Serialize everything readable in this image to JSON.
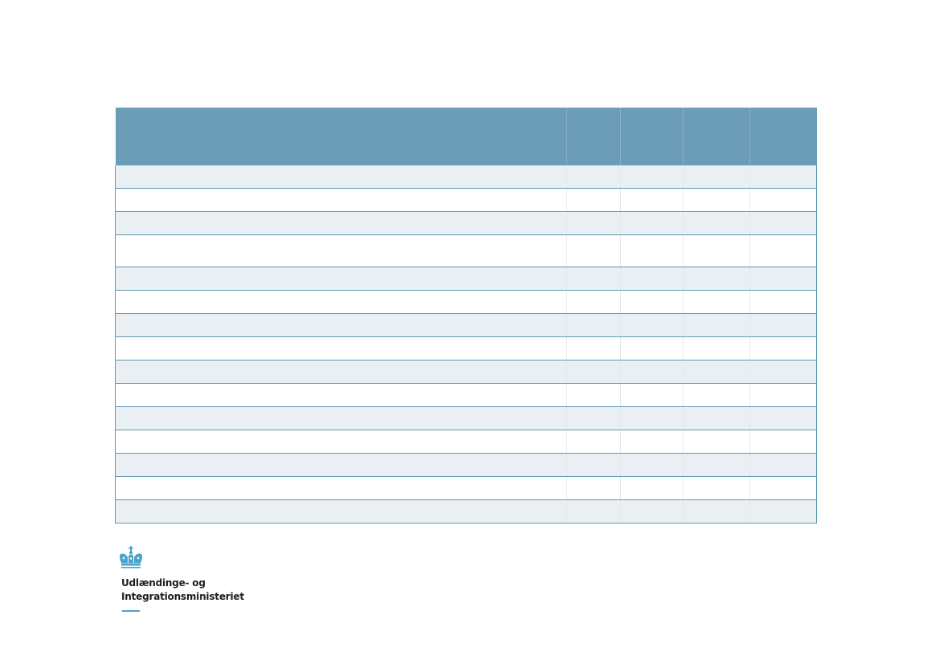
{
  "table": {
    "headers": [
      "",
      "",
      "",
      "",
      ""
    ],
    "rows": [
      [
        "",
        "",
        "",
        "",
        ""
      ],
      [
        "",
        "",
        "",
        "",
        ""
      ],
      [
        "",
        "",
        "",
        "",
        ""
      ],
      [
        "",
        "",
        "",
        "",
        ""
      ],
      [
        "",
        "",
        "",
        "",
        ""
      ],
      [
        "",
        "",
        "",
        "",
        ""
      ],
      [
        "",
        "",
        "",
        "",
        ""
      ],
      [
        "",
        "",
        "",
        "",
        ""
      ],
      [
        "",
        "",
        "",
        "",
        ""
      ],
      [
        "",
        "",
        "",
        "",
        ""
      ],
      [
        "",
        "",
        "",
        "",
        ""
      ],
      [
        "",
        "",
        "",
        "",
        ""
      ],
      [
        "",
        "",
        "",
        "",
        ""
      ],
      [
        "",
        "",
        "",
        "",
        ""
      ],
      [
        "",
        "",
        "",
        "",
        ""
      ]
    ],
    "header_color": "#6b9db8",
    "stripe_color": "#e9eff2",
    "border_color": "#5e9bb5"
  },
  "logo": {
    "icon": "crown-icon",
    "name_line1": "Udlændinge- og",
    "name_line2": "Integrationsministeriet",
    "accent_color": "#4aa3c8"
  }
}
